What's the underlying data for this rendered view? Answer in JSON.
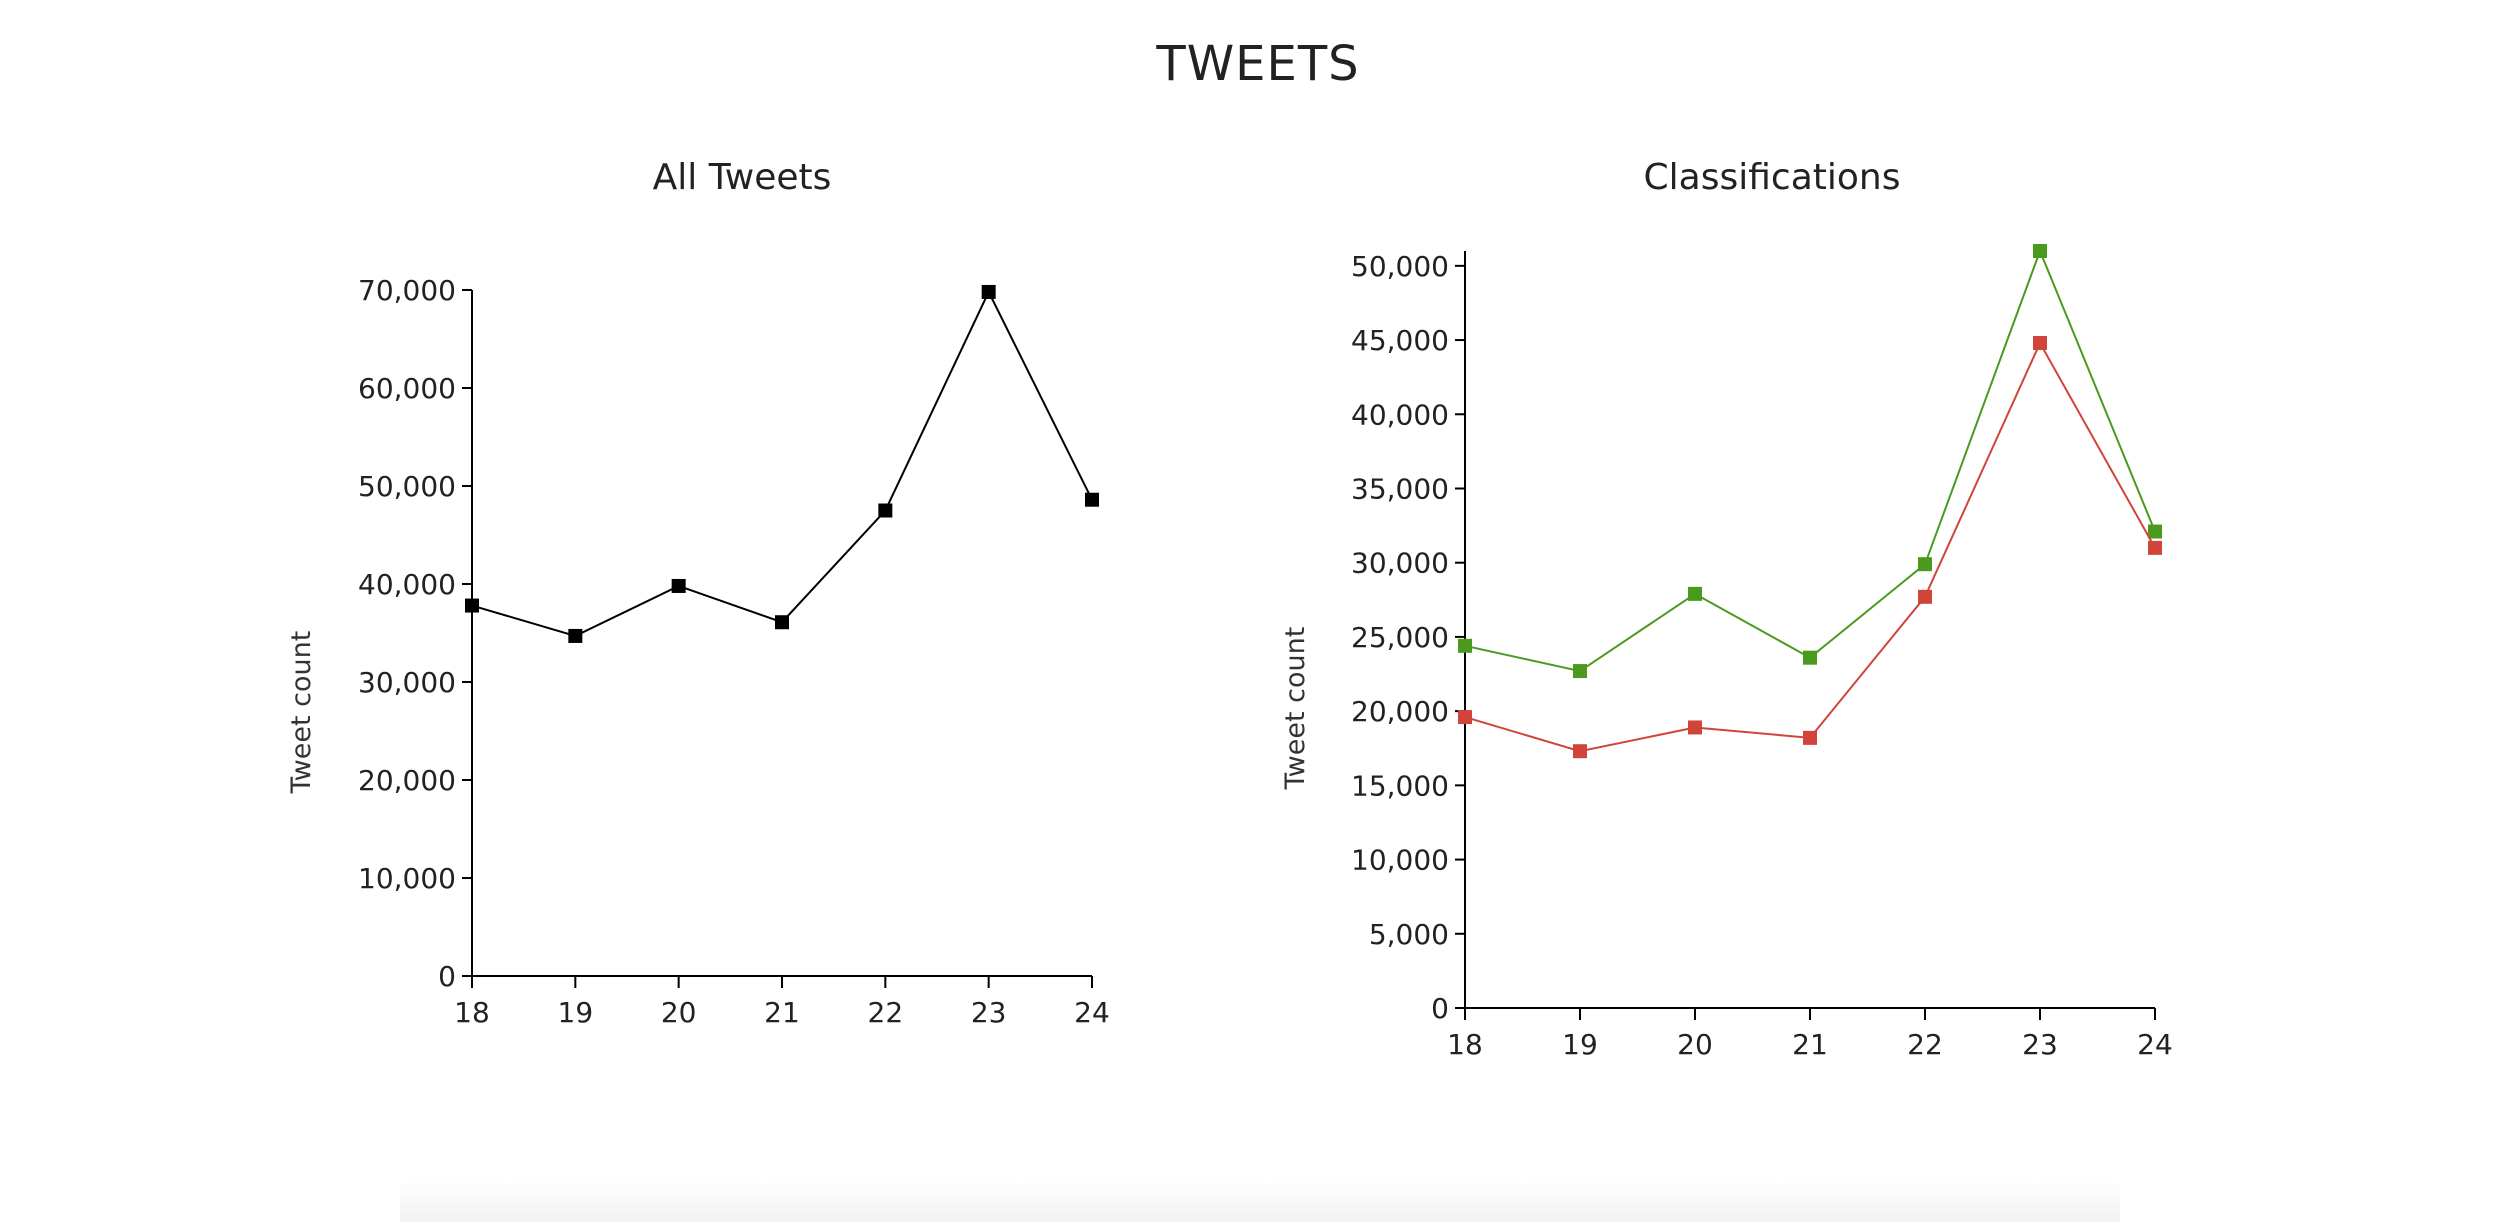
{
  "page": {
    "title": "TWEETS"
  },
  "chart_data": [
    {
      "type": "line",
      "title": "All Tweets",
      "xlabel": "",
      "ylabel": "Tweet count",
      "x": [
        18,
        19,
        20,
        21,
        22,
        23,
        24
      ],
      "x_tick_labels": [
        "18",
        "19",
        "20",
        "21",
        "22",
        "23",
        "24"
      ],
      "ylim": [
        0,
        70000
      ],
      "y_ticks": [
        0,
        10000,
        20000,
        30000,
        40000,
        50000,
        60000,
        70000
      ],
      "y_tick_labels": [
        "0",
        "10,000",
        "20,000",
        "30,000",
        "40,000",
        "50,000",
        "60,000",
        "70,000"
      ],
      "series": [
        {
          "color": "#000000",
          "values": [
            37800,
            34700,
            39800,
            36100,
            47500,
            69800,
            48600
          ]
        }
      ],
      "grid": false
    },
    {
      "type": "line",
      "title": "Classifications",
      "xlabel": "",
      "ylabel": "Tweet count",
      "x": [
        18,
        19,
        20,
        21,
        22,
        23,
        24
      ],
      "x_tick_labels": [
        "18",
        "19",
        "20",
        "21",
        "22",
        "23",
        "24"
      ],
      "ylim": [
        0,
        51000
      ],
      "y_ticks": [
        0,
        5000,
        10000,
        15000,
        20000,
        25000,
        30000,
        35000,
        40000,
        45000,
        50000
      ],
      "y_tick_labels": [
        "0",
        "5,000",
        "10,000",
        "15,000",
        "20,000",
        "25,000",
        "30,000",
        "35,000",
        "40,000",
        "45,000",
        "50,000"
      ],
      "series": [
        {
          "color": "#4a9a1e",
          "values": [
            24400,
            22700,
            27900,
            23600,
            29900,
            51000,
            32100
          ]
        },
        {
          "color": "#d0443a",
          "values": [
            19600,
            17300,
            18900,
            18200,
            27700,
            44800,
            31000
          ]
        }
      ],
      "grid": false
    }
  ]
}
